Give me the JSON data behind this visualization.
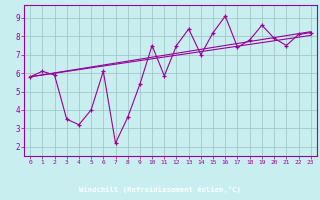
{
  "xlabel": "Windchill (Refroidissement éolien,°C)",
  "bg_color": "#c8eef0",
  "line_color": "#990099",
  "grid_color": "#9dbfbf",
  "xlabel_bg": "#660066",
  "xlabel_fg": "#ffffff",
  "x_data": [
    0,
    1,
    2,
    3,
    4,
    5,
    6,
    7,
    8,
    9,
    10,
    11,
    12,
    13,
    14,
    15,
    16,
    17,
    18,
    19,
    20,
    21,
    22,
    23
  ],
  "y_main": [
    5.8,
    6.1,
    5.9,
    3.5,
    3.2,
    4.0,
    6.1,
    2.2,
    3.6,
    5.4,
    7.5,
    5.85,
    7.5,
    8.4,
    7.0,
    8.2,
    9.1,
    7.4,
    7.8,
    8.6,
    7.9,
    7.5,
    8.1,
    8.2
  ],
  "y_upper_start": 5.8,
  "y_upper_end": 8.25,
  "y_lower_start": 5.8,
  "y_lower_end": 8.05,
  "ylim": [
    1.5,
    9.7
  ],
  "yticks": [
    2,
    3,
    4,
    5,
    6,
    7,
    8,
    9
  ],
  "xlim": [
    -0.5,
    23.5
  ],
  "xticks": [
    0,
    1,
    2,
    3,
    4,
    5,
    6,
    7,
    8,
    9,
    10,
    11,
    12,
    13,
    14,
    15,
    16,
    17,
    18,
    19,
    20,
    21,
    22,
    23
  ]
}
